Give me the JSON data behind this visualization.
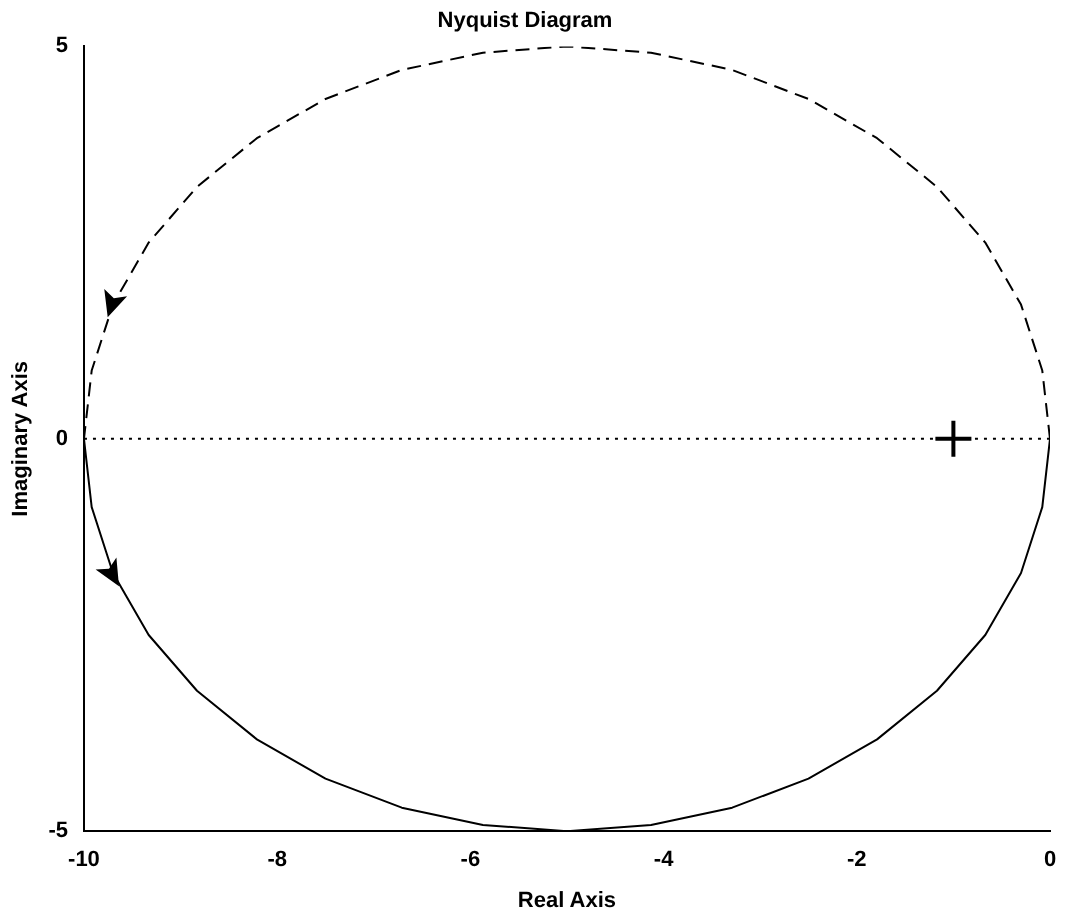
{
  "chart_data": {
    "type": "line",
    "title": "Nyquist Diagram",
    "xlabel": "Real Axis",
    "ylabel": "Imaginary Axis",
    "xlim": [
      -10,
      0
    ],
    "ylim": [
      -5,
      5
    ],
    "xticks": [
      -10,
      -8,
      -6,
      -4,
      -2,
      0
    ],
    "yticks": [
      -5,
      0,
      5
    ],
    "grid": false,
    "legend": false,
    "series": [
      {
        "color": "#000000",
        "line_style": "dashed",
        "marker": "none",
        "x": [
          0,
          -0.08,
          -0.3,
          -0.67,
          -1.17,
          -1.79,
          -2.5,
          -3.29,
          -4.13,
          -5,
          -5.87,
          -6.71,
          -7.5,
          -8.21,
          -8.83,
          -9.33,
          -9.7,
          -9.92,
          -10
        ],
        "values": [
          0,
          0.87,
          1.71,
          2.5,
          3.21,
          3.83,
          4.33,
          4.7,
          4.92,
          5,
          4.92,
          4.7,
          4.33,
          3.83,
          3.21,
          2.5,
          1.71,
          0.87,
          0
        ]
      },
      {
        "color": "#000000",
        "line_style": "solid",
        "marker": "none",
        "x": [
          -10,
          -9.92,
          -9.7,
          -9.33,
          -8.83,
          -8.21,
          -7.5,
          -6.71,
          -5.87,
          -5,
          -4.13,
          -3.29,
          -2.5,
          -1.79,
          -1.17,
          -0.67,
          -0.3,
          -0.08,
          0
        ],
        "values": [
          0,
          -0.87,
          -1.71,
          -2.5,
          -3.21,
          -3.83,
          -4.33,
          -4.7,
          -4.92,
          -5,
          -4.92,
          -4.7,
          -4.33,
          -3.83,
          -3.21,
          -2.5,
          -1.71,
          -0.87,
          0
        ]
      },
      {
        "type": "scatter",
        "color": "#000000",
        "marker": "cross",
        "x": [
          -1
        ],
        "values": [
          0
        ]
      }
    ],
    "ref_lines": [
      {
        "axis": "y",
        "value": 0,
        "color": "#000000",
        "line_style": "dotted"
      }
    ]
  }
}
